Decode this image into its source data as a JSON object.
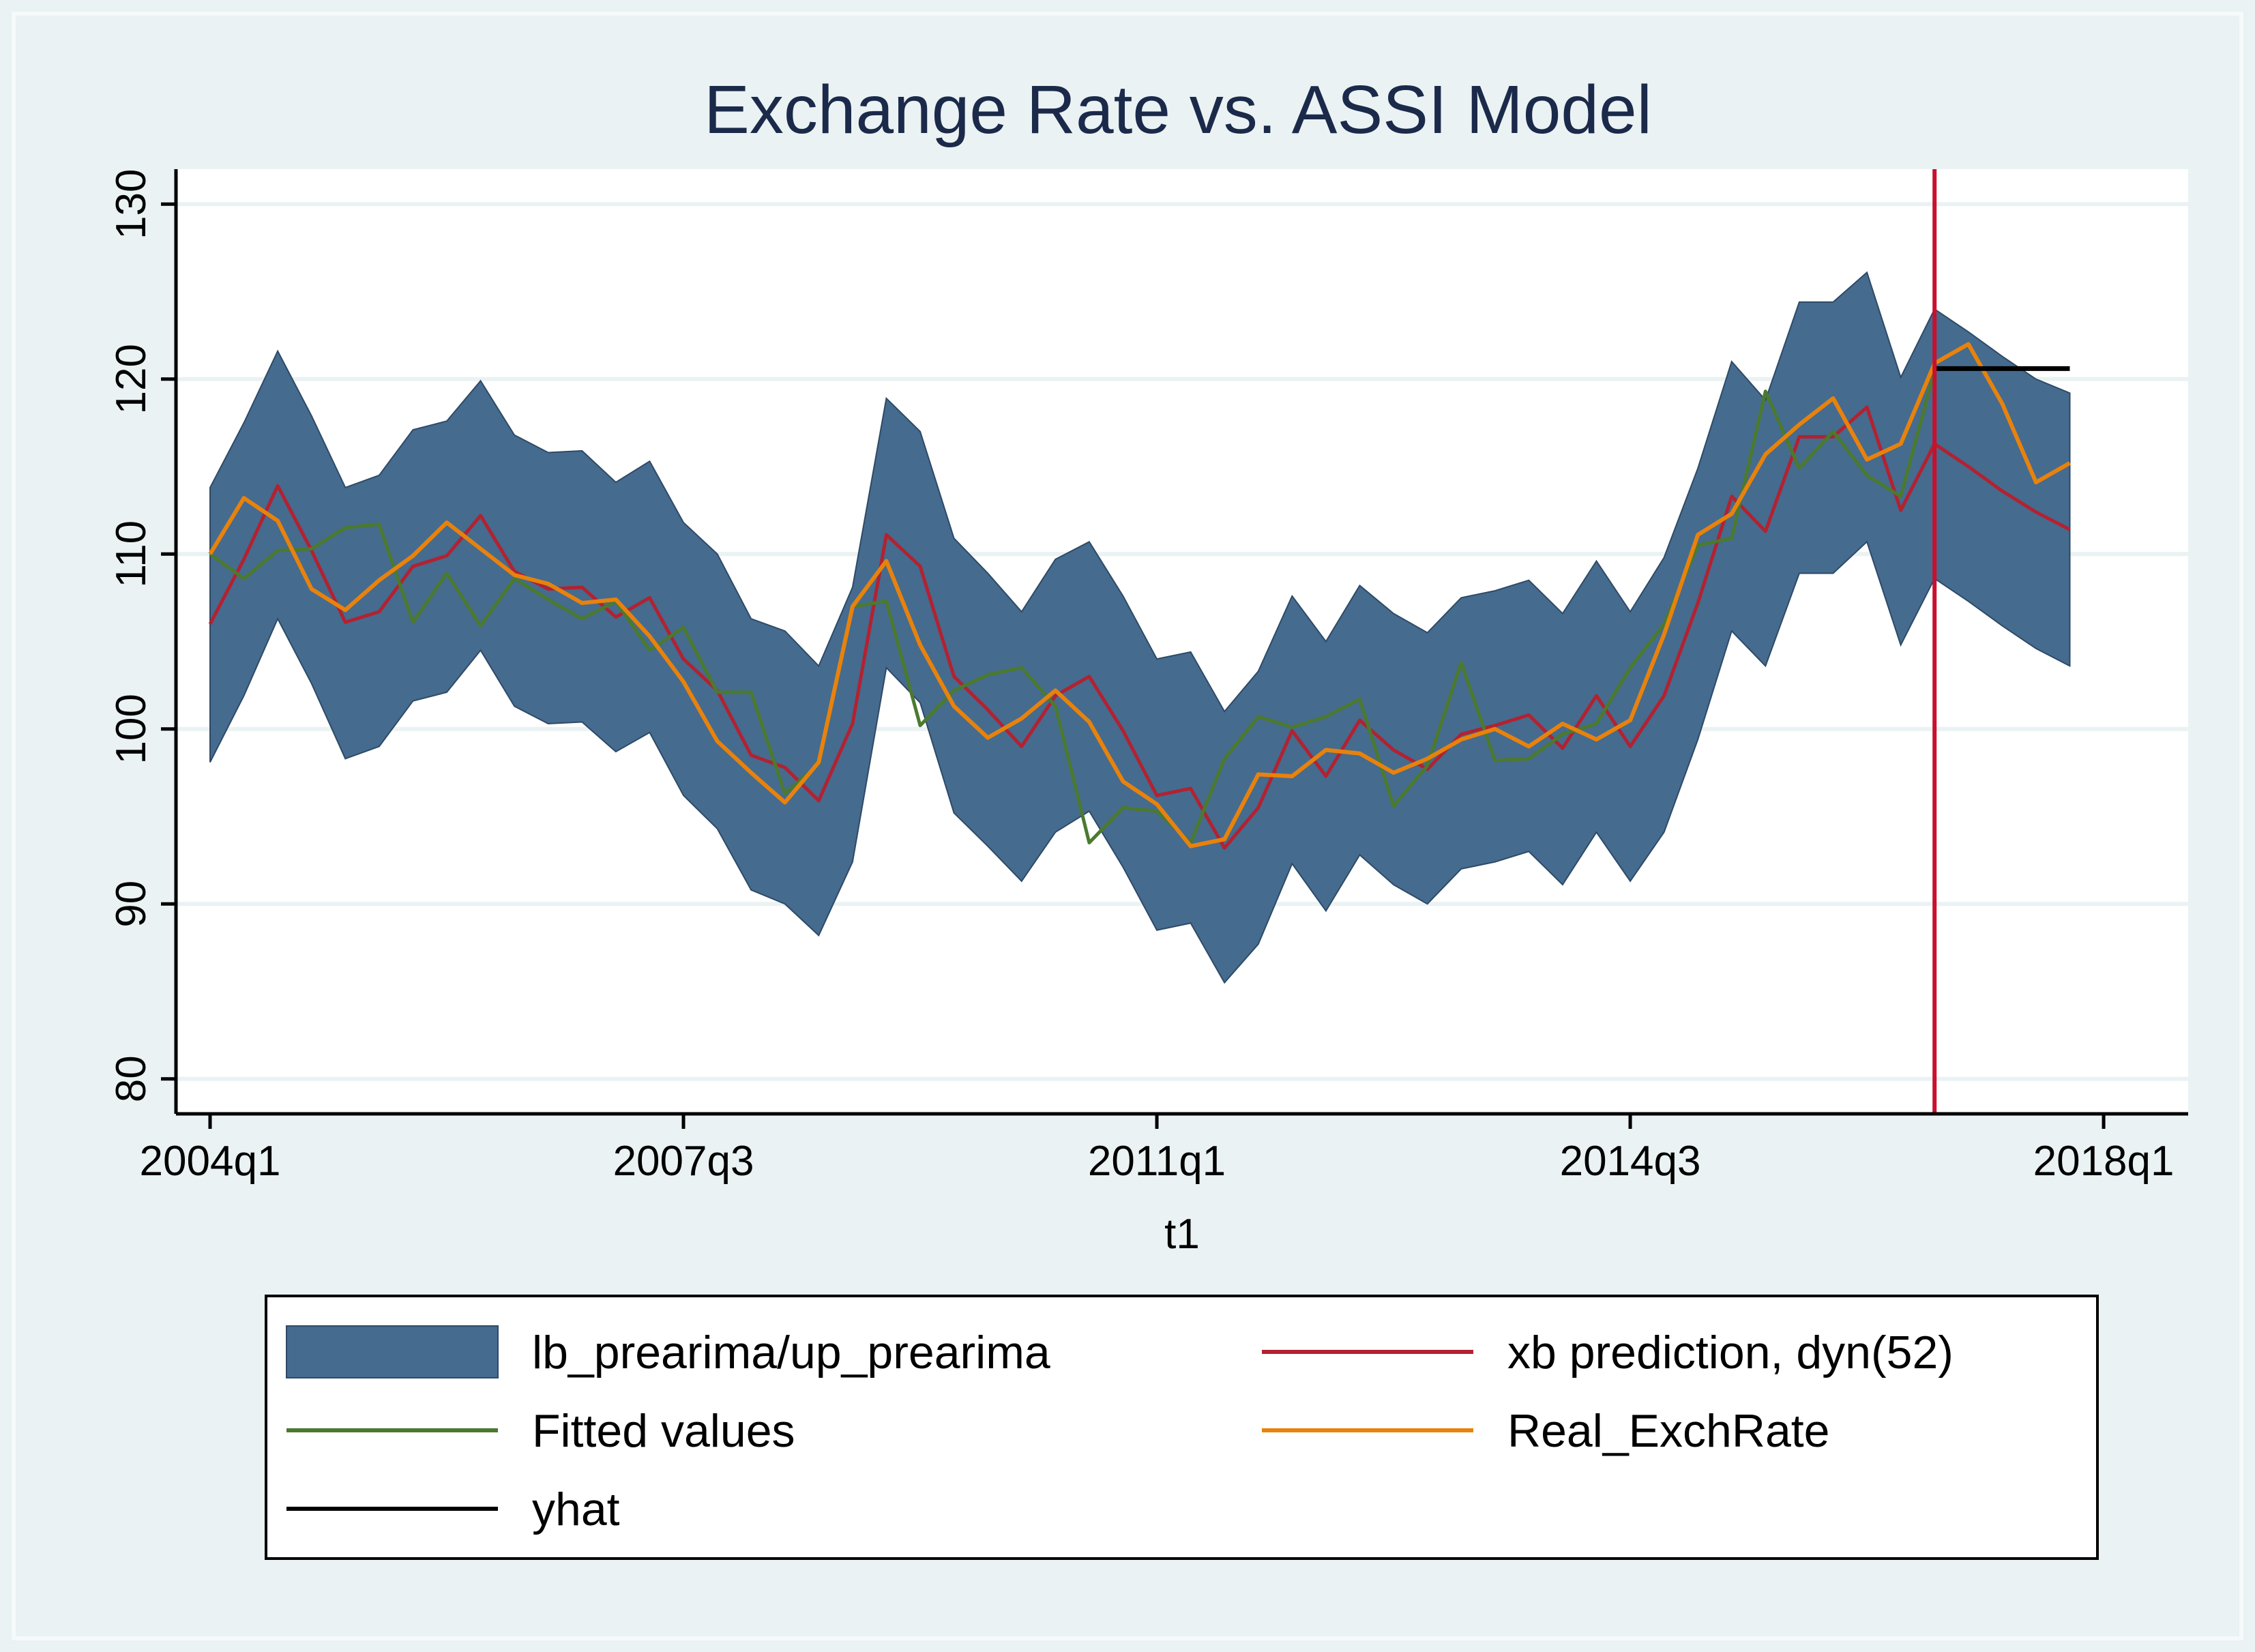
{
  "chart_data": {
    "type": "line",
    "title": "Exchange Rate vs. ASSI Model",
    "xlabel": "t1",
    "ylabel": "",
    "xlim": [
      0,
      58.5
    ],
    "ylim": [
      78,
      132
    ],
    "x_ticks": [
      {
        "x": 0,
        "label": "2004q1"
      },
      {
        "x": 14,
        "label": "2007q3"
      },
      {
        "x": 28,
        "label": "2011q1"
      },
      {
        "x": 42,
        "label": "2014q3"
      },
      {
        "x": 56,
        "label": "2018q1"
      }
    ],
    "y_ticks": [
      80,
      90,
      100,
      110,
      120,
      130
    ],
    "grid": true,
    "vline": {
      "x": 51,
      "color": "#c8102e"
    },
    "band": {
      "name": "lb_prearima/up_prearima",
      "color": "#456b8f",
      "x": [
        0,
        1,
        2,
        3,
        4,
        5,
        6,
        7,
        8,
        9,
        10,
        11,
        12,
        13,
        14,
        15,
        16,
        17,
        18,
        19,
        20,
        21,
        22,
        23,
        24,
        25,
        26,
        27,
        28,
        29,
        30,
        31,
        32,
        33,
        34,
        35,
        36,
        37,
        38,
        39,
        40,
        41,
        42,
        43,
        44,
        45,
        46,
        47,
        48,
        49,
        50,
        51,
        52,
        53,
        54,
        55
      ],
      "upper": [
        113.8,
        117.5,
        121.6,
        117.9,
        113.8,
        114.5,
        117.1,
        117.6,
        119.9,
        116.8,
        115.8,
        115.9,
        114.1,
        115.3,
        111.8,
        110.0,
        106.3,
        105.6,
        103.6,
        108.1,
        118.9,
        117.0,
        110.9,
        108.9,
        106.7,
        109.7,
        110.7,
        107.6,
        104.0,
        104.4,
        101.0,
        103.3,
        107.6,
        105.0,
        108.2,
        106.6,
        105.5,
        107.5,
        107.9,
        108.5,
        106.6,
        109.6,
        106.7,
        109.8,
        114.9,
        121.0,
        118.8,
        124.4,
        124.4,
        126.1,
        120.1,
        124.0,
        122.7,
        121.3,
        120.0,
        119.2
      ],
      "lower": [
        98.1,
        101.9,
        106.3,
        102.6,
        98.3,
        99.0,
        101.6,
        102.1,
        104.5,
        101.3,
        100.3,
        100.4,
        98.7,
        99.8,
        96.2,
        94.3,
        90.8,
        90.0,
        88.2,
        92.4,
        103.5,
        101.5,
        95.2,
        93.3,
        91.3,
        94.1,
        95.3,
        92.1,
        88.5,
        88.9,
        85.5,
        87.7,
        92.3,
        89.6,
        92.8,
        91.1,
        90.0,
        92.0,
        92.4,
        93.0,
        91.1,
        94.1,
        91.3,
        94.1,
        99.4,
        105.6,
        103.6,
        108.9,
        108.9,
        110.7,
        104.8,
        108.6,
        107.3,
        105.9,
        104.6,
        103.6
      ]
    },
    "series": [
      {
        "name": "xb prediction, dyn(52)",
        "color": "#b22231",
        "x": [
          0,
          1,
          2,
          3,
          4,
          5,
          6,
          7,
          8,
          9,
          10,
          11,
          12,
          13,
          14,
          15,
          16,
          17,
          18,
          19,
          20,
          21,
          22,
          23,
          24,
          25,
          26,
          27,
          28,
          29,
          30,
          31,
          32,
          33,
          34,
          35,
          36,
          37,
          38,
          39,
          40,
          41,
          42,
          43,
          44,
          45,
          46,
          47,
          48,
          49,
          50,
          51,
          52,
          53,
          54,
          55
        ],
        "values": [
          106.0,
          109.7,
          113.9,
          110.2,
          106.1,
          106.7,
          109.3,
          109.9,
          112.2,
          109.0,
          108.0,
          108.1,
          106.4,
          107.5,
          104.0,
          102.2,
          98.5,
          97.8,
          95.9,
          100.3,
          111.1,
          109.3,
          103.0,
          101.1,
          99.0,
          101.9,
          103.0,
          99.9,
          96.2,
          96.6,
          93.2,
          95.5,
          99.9,
          97.3,
          100.5,
          98.8,
          97.7,
          99.7,
          100.2,
          100.8,
          98.9,
          101.9,
          99.0,
          101.9,
          107.2,
          113.3,
          111.3,
          116.7,
          116.7,
          118.4,
          112.5,
          116.3,
          115.0,
          113.6,
          112.4,
          111.4
        ]
      },
      {
        "name": "Fitted values",
        "color": "#4b7a2f",
        "x": [
          0,
          1,
          2,
          3,
          4,
          5,
          6,
          7,
          8,
          9,
          10,
          11,
          12,
          13,
          14,
          15,
          16,
          17,
          18,
          19,
          20,
          21,
          22,
          23,
          24,
          25,
          26,
          27,
          28,
          29,
          30,
          31,
          32,
          33,
          34,
          35,
          36,
          37,
          38,
          39,
          40,
          41,
          42,
          43,
          44,
          45,
          46,
          47,
          48,
          49,
          50,
          51
        ],
        "values": [
          110.0,
          108.6,
          110.2,
          110.3,
          111.5,
          111.7,
          106.1,
          108.9,
          105.9,
          108.6,
          107.4,
          106.3,
          107.3,
          104.5,
          105.8,
          102.1,
          102.1,
          96.3,
          98.0,
          107.0,
          107.3,
          100.2,
          102.2,
          103.1,
          103.5,
          101.3,
          93.5,
          95.5,
          95.3,
          93.5,
          98.3,
          100.7,
          100.1,
          100.7,
          101.7,
          95.6,
          97.9,
          103.8,
          98.2,
          98.3,
          99.7,
          100.3,
          103.5,
          106.0,
          110.5,
          110.9,
          119.3,
          114.9,
          117.0,
          114.5,
          113.3,
          120.5
        ]
      },
      {
        "name": "Real_ExchRate",
        "color": "#e8820c",
        "x": [
          0,
          1,
          2,
          3,
          4,
          5,
          6,
          7,
          8,
          9,
          10,
          11,
          12,
          13,
          14,
          15,
          16,
          17,
          18,
          19,
          20,
          21,
          22,
          23,
          24,
          25,
          26,
          27,
          28,
          29,
          30,
          31,
          32,
          33,
          34,
          35,
          36,
          37,
          38,
          39,
          40,
          41,
          42,
          43,
          44,
          45,
          46,
          47,
          48,
          49,
          50,
          51,
          52,
          53,
          54,
          55
        ],
        "values": [
          110.0,
          113.2,
          111.9,
          108.0,
          106.8,
          108.5,
          109.9,
          111.8,
          110.3,
          108.8,
          108.3,
          107.2,
          107.4,
          105.3,
          102.7,
          99.3,
          97.5,
          95.8,
          98.1,
          107.0,
          109.6,
          104.8,
          101.3,
          99.5,
          100.6,
          102.2,
          100.4,
          97.0,
          95.7,
          93.3,
          93.7,
          97.4,
          97.3,
          98.8,
          98.6,
          97.5,
          98.3,
          99.4,
          100.0,
          99.0,
          100.3,
          99.4,
          100.5,
          105.4,
          111.1,
          112.3,
          115.7,
          117.4,
          118.9,
          115.4,
          116.3,
          120.9,
          122.0,
          118.6,
          114.1,
          115.2
        ]
      },
      {
        "name": "yhat",
        "color": "#000000",
        "x": [
          51,
          55
        ],
        "values": [
          120.6,
          120.6
        ]
      }
    ],
    "legend": {
      "placement": "bottom",
      "entries": [
        {
          "label": "lb_prearima/up_prearima",
          "kind": "area",
          "color": "#456b8f"
        },
        {
          "label": "xb prediction, dyn(52)",
          "kind": "line",
          "color": "#b22231"
        },
        {
          "label": "Fitted values",
          "kind": "line",
          "color": "#4b7a2f"
        },
        {
          "label": "Real_ExchRate",
          "kind": "line",
          "color": "#e8820c"
        },
        {
          "label": "yhat",
          "kind": "line",
          "color": "#000000"
        }
      ]
    },
    "colors": {
      "outer_background": "#eaf2f3",
      "plot_background": "#ffffff",
      "grid": "#eaf2f3",
      "axis": "#000000"
    }
  }
}
